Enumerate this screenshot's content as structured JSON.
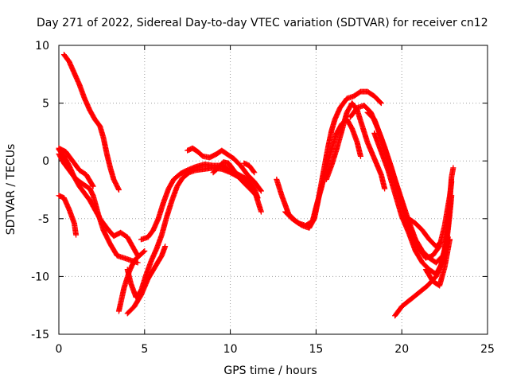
{
  "chart_data": {
    "type": "scatter",
    "title": "Day 271 of 2022, Sidereal Day-to-day VTEC variation (SDTVAR) for receiver cn12",
    "xlabel": "GPS time / hours",
    "ylabel": "SDTVAR / TECUs",
    "xlim": [
      0,
      25
    ],
    "ylim": [
      -15,
      10
    ],
    "x_ticks": [
      0,
      5,
      10,
      15,
      20,
      25
    ],
    "y_ticks": [
      -15,
      -10,
      -5,
      0,
      5,
      10
    ],
    "x_tick_labels": [
      "0",
      "5",
      "10",
      "15",
      "20",
      "25"
    ],
    "y_tick_labels": [
      "-15",
      "-10",
      "-5",
      "0",
      "5",
      "10"
    ],
    "grid": true,
    "marker": "+",
    "color": "#ff0000",
    "series": [
      {
        "name": "track-1",
        "points": [
          [
            0.3,
            9.2
          ],
          [
            0.6,
            8.6
          ],
          [
            0.9,
            7.6
          ],
          [
            1.2,
            6.6
          ],
          [
            1.5,
            5.4
          ],
          [
            1.8,
            4.4
          ],
          [
            2.1,
            3.6
          ],
          [
            2.4,
            3.0
          ],
          [
            2.6,
            2.0
          ],
          [
            2.8,
            0.6
          ],
          [
            3.0,
            -0.6
          ],
          [
            3.2,
            -1.6
          ],
          [
            3.5,
            -2.5
          ]
        ]
      },
      {
        "name": "track-2",
        "points": [
          [
            0.0,
            1.0
          ],
          [
            0.3,
            0.4
          ],
          [
            0.6,
            -0.4
          ],
          [
            0.9,
            -1.4
          ],
          [
            1.2,
            -2.2
          ],
          [
            1.5,
            -2.8
          ],
          [
            1.8,
            -3.4
          ],
          [
            2.1,
            -4.2
          ],
          [
            2.4,
            -5.0
          ],
          [
            2.8,
            -5.8
          ],
          [
            3.2,
            -6.5
          ],
          [
            3.6,
            -6.2
          ],
          [
            4.0,
            -6.6
          ],
          [
            4.3,
            -7.4
          ],
          [
            4.6,
            -8.2
          ]
        ]
      },
      {
        "name": "track-3",
        "points": [
          [
            0.0,
            0.6
          ],
          [
            0.3,
            -0.2
          ],
          [
            0.6,
            -0.8
          ],
          [
            0.9,
            -1.4
          ],
          [
            1.2,
            -1.8
          ],
          [
            1.5,
            -2.1
          ],
          [
            1.8,
            -2.4
          ],
          [
            2.0,
            -3.0
          ],
          [
            2.3,
            -4.6
          ],
          [
            2.6,
            -6.0
          ],
          [
            3.0,
            -7.2
          ],
          [
            3.4,
            -8.2
          ],
          [
            3.8,
            -8.4
          ],
          [
            4.2,
            -8.6
          ],
          [
            4.6,
            -8.8
          ]
        ]
      },
      {
        "name": "track-4",
        "points": [
          [
            0.0,
            1.1
          ],
          [
            0.4,
            0.8
          ],
          [
            0.8,
            0.0
          ],
          [
            1.2,
            -0.8
          ],
          [
            1.6,
            -1.2
          ],
          [
            2.0,
            -2.2
          ]
        ]
      },
      {
        "name": "track-5",
        "points": [
          [
            0.0,
            -3.0
          ],
          [
            0.3,
            -3.2
          ],
          [
            0.6,
            -4.2
          ],
          [
            0.9,
            -5.4
          ],
          [
            1.0,
            -6.4
          ]
        ]
      },
      {
        "name": "track-6",
        "points": [
          [
            3.5,
            -13.0
          ],
          [
            3.8,
            -11.0
          ],
          [
            4.1,
            -9.6
          ],
          [
            4.4,
            -8.6
          ],
          [
            4.7,
            -8.2
          ],
          [
            5.0,
            -7.8
          ]
        ]
      },
      {
        "name": "track-7",
        "points": [
          [
            4.0,
            -13.2
          ],
          [
            4.4,
            -12.6
          ],
          [
            4.8,
            -11.6
          ],
          [
            5.2,
            -10.2
          ],
          [
            5.6,
            -9.2
          ],
          [
            6.0,
            -8.2
          ],
          [
            6.2,
            -7.4
          ]
        ]
      },
      {
        "name": "track-8",
        "points": [
          [
            4.0,
            -9.4
          ],
          [
            4.2,
            -10.6
          ],
          [
            4.5,
            -11.8
          ],
          [
            4.8,
            -11.2
          ],
          [
            5.1,
            -9.8
          ],
          [
            5.4,
            -8.6
          ],
          [
            5.7,
            -7.6
          ],
          [
            6.0,
            -6.4
          ],
          [
            6.3,
            -4.8
          ],
          [
            6.6,
            -3.4
          ],
          [
            6.9,
            -2.2
          ],
          [
            7.2,
            -1.5
          ],
          [
            7.6,
            -1.0
          ],
          [
            8.0,
            -0.8
          ],
          [
            8.5,
            -0.7
          ],
          [
            9.0,
            -0.6
          ],
          [
            9.5,
            -0.7
          ],
          [
            10.0,
            -1.0
          ],
          [
            10.5,
            -1.4
          ],
          [
            11.0,
            -2.0
          ],
          [
            11.5,
            -3.0
          ],
          [
            11.8,
            -4.4
          ]
        ]
      },
      {
        "name": "track-9",
        "points": [
          [
            4.8,
            -6.8
          ],
          [
            5.2,
            -6.6
          ],
          [
            5.5,
            -6.0
          ],
          [
            5.8,
            -5.0
          ],
          [
            6.1,
            -3.6
          ],
          [
            6.4,
            -2.4
          ],
          [
            6.7,
            -1.6
          ],
          [
            7.1,
            -1.1
          ],
          [
            7.5,
            -0.8
          ],
          [
            8.0,
            -0.5
          ],
          [
            8.5,
            -0.3
          ],
          [
            9.0,
            -0.4
          ],
          [
            9.5,
            -0.4
          ],
          [
            10.0,
            -0.8
          ],
          [
            10.5,
            -1.2
          ],
          [
            11.0,
            -1.6
          ],
          [
            11.4,
            -2.4
          ],
          [
            11.6,
            -3.2
          ]
        ]
      },
      {
        "name": "track-10",
        "points": [
          [
            7.5,
            0.9
          ],
          [
            7.8,
            1.1
          ],
          [
            8.1,
            0.8
          ],
          [
            8.4,
            0.4
          ],
          [
            8.8,
            0.3
          ],
          [
            9.2,
            0.6
          ],
          [
            9.5,
            0.9
          ],
          [
            9.8,
            0.6
          ],
          [
            10.2,
            0.2
          ],
          [
            10.6,
            -0.4
          ],
          [
            11.0,
            -1.2
          ],
          [
            11.4,
            -1.8
          ],
          [
            11.8,
            -2.6
          ]
        ]
      },
      {
        "name": "track-11",
        "points": [
          [
            9.0,
            -1.0
          ],
          [
            9.3,
            -0.6
          ],
          [
            9.6,
            -0.1
          ],
          [
            9.9,
            -0.2
          ],
          [
            10.2,
            -0.8
          ],
          [
            10.6,
            -1.6
          ],
          [
            11.0,
            -2.2
          ],
          [
            11.4,
            -2.8
          ]
        ]
      },
      {
        "name": "track-12",
        "points": [
          [
            10.8,
            -0.2
          ],
          [
            11.1,
            -0.4
          ],
          [
            11.4,
            -1.0
          ]
        ]
      },
      {
        "name": "track-13",
        "points": [
          [
            12.7,
            -1.6
          ],
          [
            13.0,
            -3.0
          ],
          [
            13.4,
            -4.6
          ],
          [
            13.8,
            -5.2
          ],
          [
            14.2,
            -5.6
          ],
          [
            14.6,
            -5.8
          ],
          [
            14.9,
            -5.0
          ],
          [
            15.1,
            -3.6
          ],
          [
            15.3,
            -2.0
          ],
          [
            15.5,
            -0.4
          ],
          [
            15.7,
            1.2
          ],
          [
            15.9,
            2.6
          ],
          [
            16.1,
            3.6
          ],
          [
            16.4,
            4.6
          ],
          [
            16.8,
            5.4
          ],
          [
            17.2,
            5.6
          ],
          [
            17.6,
            6.0
          ],
          [
            18.0,
            6.0
          ],
          [
            18.4,
            5.6
          ],
          [
            18.8,
            5.0
          ]
        ]
      },
      {
        "name": "track-14",
        "points": [
          [
            13.2,
            -4.4
          ],
          [
            13.6,
            -5.0
          ],
          [
            14.0,
            -5.4
          ],
          [
            14.4,
            -5.6
          ],
          [
            14.8,
            -5.2
          ],
          [
            15.0,
            -4.0
          ],
          [
            15.3,
            -2.4
          ],
          [
            15.6,
            -0.6
          ],
          [
            15.9,
            1.0
          ],
          [
            16.2,
            2.4
          ],
          [
            16.5,
            3.2
          ],
          [
            16.8,
            3.6
          ],
          [
            17.1,
            2.8
          ],
          [
            17.4,
            1.6
          ],
          [
            17.6,
            0.4
          ]
        ]
      },
      {
        "name": "track-15",
        "points": [
          [
            15.6,
            -1.6
          ],
          [
            15.9,
            -0.4
          ],
          [
            16.2,
            1.0
          ],
          [
            16.5,
            2.6
          ],
          [
            16.8,
            4.2
          ],
          [
            17.1,
            5.0
          ],
          [
            17.4,
            4.4
          ],
          [
            17.7,
            3.0
          ],
          [
            18.0,
            1.6
          ],
          [
            18.4,
            0.2
          ],
          [
            18.8,
            -1.2
          ],
          [
            19.0,
            -2.4
          ]
        ]
      },
      {
        "name": "track-16",
        "points": [
          [
            17.0,
            3.8
          ],
          [
            17.4,
            4.6
          ],
          [
            17.8,
            4.8
          ],
          [
            18.2,
            4.2
          ],
          [
            18.6,
            2.8
          ],
          [
            19.0,
            1.2
          ],
          [
            19.4,
            -0.6
          ],
          [
            19.8,
            -2.6
          ],
          [
            20.2,
            -4.6
          ],
          [
            20.6,
            -6.4
          ],
          [
            21.0,
            -7.6
          ],
          [
            21.4,
            -8.4
          ],
          [
            21.8,
            -8.2
          ],
          [
            22.2,
            -7.4
          ],
          [
            22.5,
            -5.6
          ],
          [
            22.8,
            -3.0
          ],
          [
            22.9,
            -1.8
          ]
        ]
      },
      {
        "name": "track-17",
        "points": [
          [
            18.0,
            4.2
          ],
          [
            18.4,
            3.6
          ],
          [
            18.8,
            2.0
          ],
          [
            19.2,
            0.2
          ],
          [
            19.6,
            -1.6
          ],
          [
            20.0,
            -3.4
          ],
          [
            20.4,
            -5.2
          ],
          [
            20.8,
            -6.8
          ],
          [
            21.2,
            -7.8
          ],
          [
            21.6,
            -8.4
          ],
          [
            22.0,
            -8.8
          ],
          [
            22.4,
            -8.2
          ],
          [
            22.7,
            -6.6
          ]
        ]
      },
      {
        "name": "track-18",
        "points": [
          [
            18.4,
            2.4
          ],
          [
            18.8,
            0.8
          ],
          [
            19.2,
            -0.8
          ],
          [
            19.6,
            -2.8
          ],
          [
            20.0,
            -4.8
          ],
          [
            20.4,
            -6.2
          ],
          [
            20.8,
            -7.8
          ],
          [
            21.2,
            -8.8
          ],
          [
            21.6,
            -9.4
          ],
          [
            22.0,
            -9.8
          ],
          [
            22.3,
            -9.0
          ],
          [
            22.6,
            -7.2
          ],
          [
            22.8,
            -4.6
          ],
          [
            22.9,
            -3.0
          ]
        ]
      },
      {
        "name": "track-19",
        "points": [
          [
            19.6,
            -13.4
          ],
          [
            20.0,
            -12.6
          ],
          [
            20.5,
            -12.0
          ],
          [
            21.0,
            -11.4
          ],
          [
            21.5,
            -10.8
          ],
          [
            22.0,
            -10.0
          ],
          [
            22.4,
            -8.6
          ],
          [
            22.7,
            -5.6
          ],
          [
            22.9,
            -1.4
          ],
          [
            23.0,
            -0.6
          ]
        ]
      },
      {
        "name": "track-20",
        "points": [
          [
            20.4,
            -5.0
          ],
          [
            20.8,
            -5.4
          ],
          [
            21.2,
            -6.0
          ],
          [
            21.6,
            -6.8
          ],
          [
            22.0,
            -7.4
          ],
          [
            22.3,
            -7.0
          ]
        ]
      },
      {
        "name": "track-21",
        "points": [
          [
            21.4,
            -9.4
          ],
          [
            21.8,
            -10.4
          ],
          [
            22.2,
            -10.8
          ],
          [
            22.5,
            -9.2
          ],
          [
            22.8,
            -6.8
          ]
        ]
      }
    ]
  }
}
